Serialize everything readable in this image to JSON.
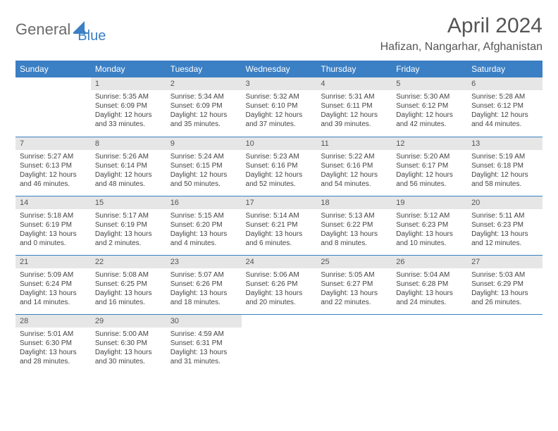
{
  "logo": {
    "part1": "General",
    "part2": "Blue"
  },
  "title": "April 2024",
  "location": "Hafizan, Nangarhar, Afghanistan",
  "colors": {
    "header_bg": "#3b7fc4",
    "header_text": "#ffffff",
    "daynum_bg": "#e6e6e6",
    "text": "#444444",
    "border": "#3b7fc4"
  },
  "weekdays": [
    "Sunday",
    "Monday",
    "Tuesday",
    "Wednesday",
    "Thursday",
    "Friday",
    "Saturday"
  ],
  "weeks": [
    [
      null,
      {
        "n": "1",
        "sr": "5:35 AM",
        "ss": "6:09 PM",
        "dl": "12 hours and 33 minutes."
      },
      {
        "n": "2",
        "sr": "5:34 AM",
        "ss": "6:09 PM",
        "dl": "12 hours and 35 minutes."
      },
      {
        "n": "3",
        "sr": "5:32 AM",
        "ss": "6:10 PM",
        "dl": "12 hours and 37 minutes."
      },
      {
        "n": "4",
        "sr": "5:31 AM",
        "ss": "6:11 PM",
        "dl": "12 hours and 39 minutes."
      },
      {
        "n": "5",
        "sr": "5:30 AM",
        "ss": "6:12 PM",
        "dl": "12 hours and 42 minutes."
      },
      {
        "n": "6",
        "sr": "5:28 AM",
        "ss": "6:12 PM",
        "dl": "12 hours and 44 minutes."
      }
    ],
    [
      {
        "n": "7",
        "sr": "5:27 AM",
        "ss": "6:13 PM",
        "dl": "12 hours and 46 minutes."
      },
      {
        "n": "8",
        "sr": "5:26 AM",
        "ss": "6:14 PM",
        "dl": "12 hours and 48 minutes."
      },
      {
        "n": "9",
        "sr": "5:24 AM",
        "ss": "6:15 PM",
        "dl": "12 hours and 50 minutes."
      },
      {
        "n": "10",
        "sr": "5:23 AM",
        "ss": "6:16 PM",
        "dl": "12 hours and 52 minutes."
      },
      {
        "n": "11",
        "sr": "5:22 AM",
        "ss": "6:16 PM",
        "dl": "12 hours and 54 minutes."
      },
      {
        "n": "12",
        "sr": "5:20 AM",
        "ss": "6:17 PM",
        "dl": "12 hours and 56 minutes."
      },
      {
        "n": "13",
        "sr": "5:19 AM",
        "ss": "6:18 PM",
        "dl": "12 hours and 58 minutes."
      }
    ],
    [
      {
        "n": "14",
        "sr": "5:18 AM",
        "ss": "6:19 PM",
        "dl": "13 hours and 0 minutes."
      },
      {
        "n": "15",
        "sr": "5:17 AM",
        "ss": "6:19 PM",
        "dl": "13 hours and 2 minutes."
      },
      {
        "n": "16",
        "sr": "5:15 AM",
        "ss": "6:20 PM",
        "dl": "13 hours and 4 minutes."
      },
      {
        "n": "17",
        "sr": "5:14 AM",
        "ss": "6:21 PM",
        "dl": "13 hours and 6 minutes."
      },
      {
        "n": "18",
        "sr": "5:13 AM",
        "ss": "6:22 PM",
        "dl": "13 hours and 8 minutes."
      },
      {
        "n": "19",
        "sr": "5:12 AM",
        "ss": "6:23 PM",
        "dl": "13 hours and 10 minutes."
      },
      {
        "n": "20",
        "sr": "5:11 AM",
        "ss": "6:23 PM",
        "dl": "13 hours and 12 minutes."
      }
    ],
    [
      {
        "n": "21",
        "sr": "5:09 AM",
        "ss": "6:24 PM",
        "dl": "13 hours and 14 minutes."
      },
      {
        "n": "22",
        "sr": "5:08 AM",
        "ss": "6:25 PM",
        "dl": "13 hours and 16 minutes."
      },
      {
        "n": "23",
        "sr": "5:07 AM",
        "ss": "6:26 PM",
        "dl": "13 hours and 18 minutes."
      },
      {
        "n": "24",
        "sr": "5:06 AM",
        "ss": "6:26 PM",
        "dl": "13 hours and 20 minutes."
      },
      {
        "n": "25",
        "sr": "5:05 AM",
        "ss": "6:27 PM",
        "dl": "13 hours and 22 minutes."
      },
      {
        "n": "26",
        "sr": "5:04 AM",
        "ss": "6:28 PM",
        "dl": "13 hours and 24 minutes."
      },
      {
        "n": "27",
        "sr": "5:03 AM",
        "ss": "6:29 PM",
        "dl": "13 hours and 26 minutes."
      }
    ],
    [
      {
        "n": "28",
        "sr": "5:01 AM",
        "ss": "6:30 PM",
        "dl": "13 hours and 28 minutes."
      },
      {
        "n": "29",
        "sr": "5:00 AM",
        "ss": "6:30 PM",
        "dl": "13 hours and 30 minutes."
      },
      {
        "n": "30",
        "sr": "4:59 AM",
        "ss": "6:31 PM",
        "dl": "13 hours and 31 minutes."
      },
      null,
      null,
      null,
      null
    ]
  ],
  "labels": {
    "sunrise": "Sunrise:",
    "sunset": "Sunset:",
    "daylight": "Daylight:"
  }
}
